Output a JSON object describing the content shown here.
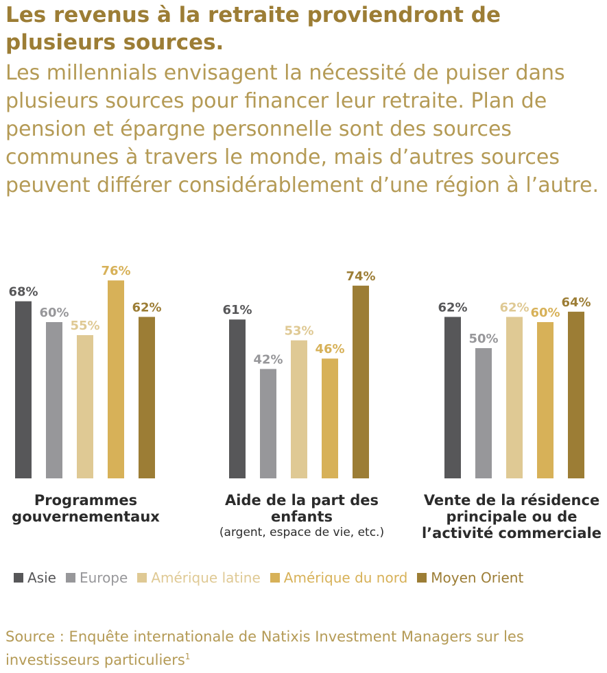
{
  "header": {
    "title": "Les revenus à la retraite proviendront de plusieurs sources.",
    "intro": "Les millennials envisagent la nécessité de puiser dans plusieurs sources pour financer leur retraite. Plan de pension et épargne personnelle sont des sources communes à travers le monde, mais d’autres sources peuvent différer considérablement d’une région à l’autre."
  },
  "chart_data": {
    "type": "bar",
    "categories": [
      {
        "title": "Programmes gouvernementaux",
        "subtitle": ""
      },
      {
        "title": "Aide de la part des enfants",
        "subtitle": "(argent, espace de vie, etc.)"
      },
      {
        "title": "Vente de la résidence principale ou de l’activité commerciale",
        "subtitle": ""
      }
    ],
    "series": [
      {
        "name": "Asie",
        "color": "#575759",
        "values": [
          68,
          61,
          62
        ]
      },
      {
        "name": "Europe",
        "color": "#97979a",
        "values": [
          60,
          42,
          50
        ]
      },
      {
        "name": "Amérique latine",
        "color": "#dfc994",
        "values": [
          55,
          53,
          62
        ]
      },
      {
        "name": "Amérique du nord",
        "color": "#d7b158",
        "values": [
          76,
          46,
          60
        ]
      },
      {
        "name": "Moyen Orient",
        "color": "#9c7d35",
        "values": [
          62,
          74,
          64
        ]
      }
    ],
    "value_suffix": "%",
    "legend_position": "bottom",
    "grid": false
  },
  "source": {
    "text": "Source : Enquête internationale de Natixis Investment Managers sur les investisseurs particuliers",
    "footnote": "1"
  }
}
